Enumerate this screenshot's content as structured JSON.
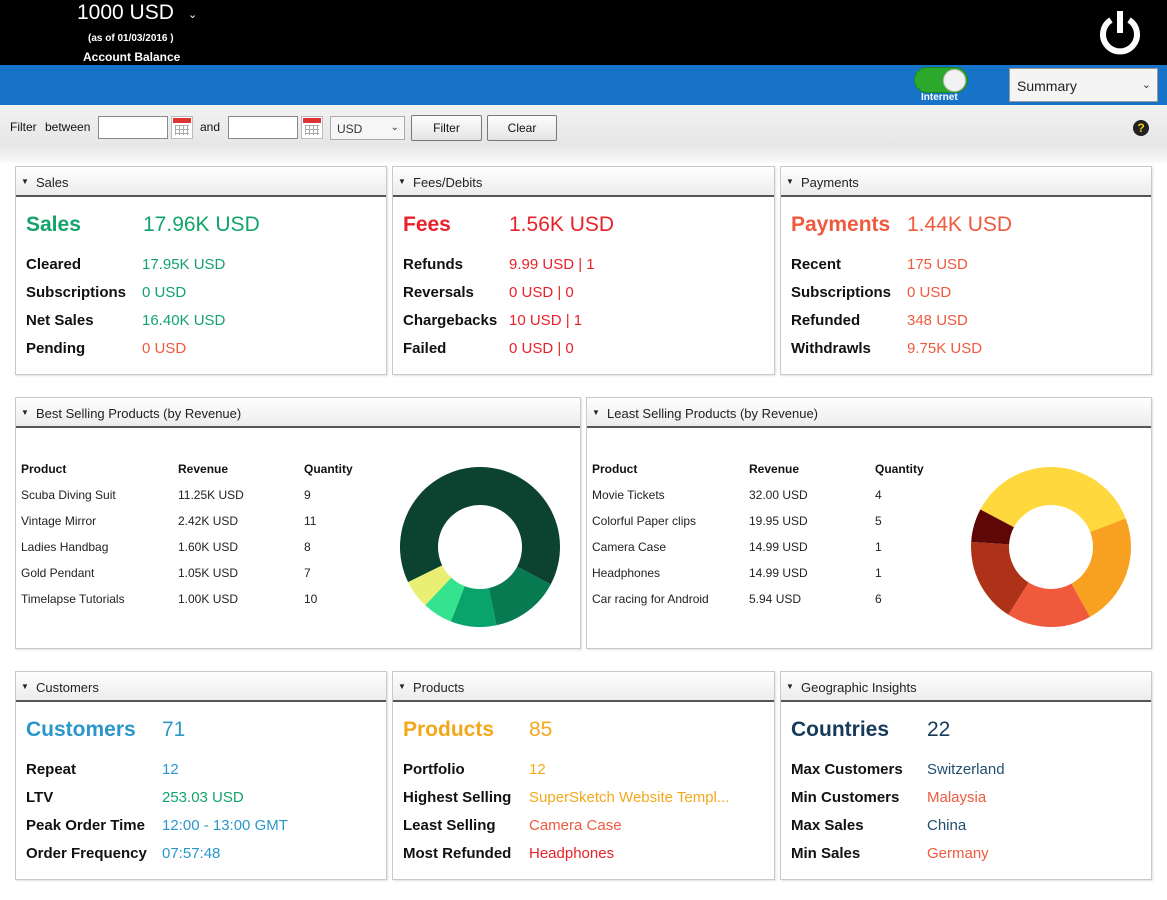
{
  "header": {
    "balance": "1000 USD",
    "balance_caret": "⌄",
    "as_of": "(as of 01/03/2016 )",
    "balance_label": "Account Balance",
    "power_icon": "power-icon"
  },
  "toolbar": {
    "internet_label": "Internet",
    "internet_on": true,
    "view_selected": "Summary"
  },
  "filter": {
    "filter_label": "Filter",
    "between_label": "between",
    "and_label": "and",
    "from_value": "",
    "to_value": "",
    "currency": "USD",
    "filter_button": "Filter",
    "clear_button": "Clear",
    "help": "?"
  },
  "colors": {
    "green": "#12a36c",
    "red": "#e8222a",
    "orange_red": "#ef5a3e",
    "blue": "#2b97c9",
    "amber": "#f3a81c",
    "navy": "#163a5a"
  },
  "sales": {
    "title": "Sales",
    "big_label": "Sales",
    "big_value": "17.96K USD",
    "rows": [
      {
        "label": "Cleared",
        "value": "17.95K USD"
      },
      {
        "label": "Subscriptions",
        "value": "0 USD"
      },
      {
        "label": "Net Sales",
        "value": "16.40K USD"
      },
      {
        "label": "Pending",
        "value": "0 USD"
      }
    ]
  },
  "fees": {
    "title": "Fees/Debits",
    "big_label": "Fees",
    "big_value": "1.56K USD",
    "rows": [
      {
        "label": "Refunds",
        "value": "9.99 USD | 1"
      },
      {
        "label": "Reversals",
        "value": "0 USD | 0"
      },
      {
        "label": "Chargebacks",
        "value": "10 USD | 1"
      },
      {
        "label": "Failed",
        "value": "0 USD | 0"
      }
    ]
  },
  "payments": {
    "title": "Payments",
    "big_label": "Payments",
    "big_value": "1.44K USD",
    "rows": [
      {
        "label": "Recent",
        "value": "175 USD"
      },
      {
        "label": "Subscriptions",
        "value": "0 USD"
      },
      {
        "label": "Refunded",
        "value": "348 USD"
      },
      {
        "label": "Withdrawls",
        "value": "9.75K USD"
      }
    ]
  },
  "best_selling": {
    "title": "Best Selling Products (by Revenue)",
    "columns": [
      "Product",
      "Revenue",
      "Quantity"
    ],
    "rows": [
      [
        "Scuba Diving Suit",
        "11.25K USD",
        "9"
      ],
      [
        "Vintage Mirror",
        "2.42K USD",
        "11"
      ],
      [
        "Ladies Handbag",
        "1.60K USD",
        "8"
      ],
      [
        "Gold Pendant",
        "1.05K USD",
        "7"
      ],
      [
        "Timelapse Tutorials",
        "1.00K USD",
        "10"
      ]
    ],
    "chart": {
      "type": "donut",
      "values": [
        11250,
        2420,
        1600,
        1050,
        1000
      ],
      "colors": [
        "#0b4230",
        "#077a52",
        "#08a46c",
        "#34e38d",
        "#e8ef73"
      ]
    }
  },
  "least_selling": {
    "title": "Least Selling Products (by Revenue)",
    "columns": [
      "Product",
      "Revenue",
      "Quantity"
    ],
    "rows": [
      [
        "Movie Tickets",
        "32.00 USD",
        "4"
      ],
      [
        "Colorful Paper clips",
        "19.95 USD",
        "5"
      ],
      [
        "Camera Case",
        "14.99 USD",
        "1"
      ],
      [
        "Headphones",
        "14.99 USD",
        "1"
      ],
      [
        "Car racing for Android",
        "5.94 USD",
        "6"
      ]
    ],
    "chart": {
      "type": "donut",
      "values": [
        32.0,
        19.95,
        14.99,
        14.99,
        5.94
      ],
      "colors": [
        "#fed83c",
        "#f8a020",
        "#ef5a3d",
        "#ad3217",
        "#5e0707"
      ]
    }
  },
  "customers": {
    "title": "Customers",
    "big_label": "Customers",
    "big_value": "71",
    "rows": [
      {
        "label": "Repeat",
        "value": "12",
        "color": "#2b97c9"
      },
      {
        "label": "LTV",
        "value": "253.03 USD",
        "color": "#12a36c"
      },
      {
        "label": "Peak Order Time",
        "value": "12:00 - 13:00 GMT",
        "color": "#2b97c9"
      },
      {
        "label": "Order Frequency",
        "value": "07:57:48",
        "color": "#2b97c9"
      }
    ]
  },
  "products": {
    "title": "Products",
    "big_label": "Products",
    "big_value": "85",
    "rows": [
      {
        "label": "Portfolio",
        "value": "12",
        "color": "#f3a81c"
      },
      {
        "label": "Highest Selling",
        "value": "SuperSketch Website Templ...",
        "color": "#f3a81c"
      },
      {
        "label": "Least Selling",
        "value": "Camera Case",
        "color": "#ef5a3e"
      },
      {
        "label": "Most Refunded",
        "value": "Headphones",
        "color": "#e8222a"
      }
    ]
  },
  "geo": {
    "title": "Geographic Insights",
    "big_label": "Countries",
    "big_value": "22",
    "rows": [
      {
        "label": "Max Customers",
        "value": "Switzerland",
        "color": "#1f4f6e"
      },
      {
        "label": "Min Customers",
        "value": "Malaysia",
        "color": "#ef5a3e"
      },
      {
        "label": "Max Sales",
        "value": "China",
        "color": "#1f4f6e"
      },
      {
        "label": "Min Sales",
        "value": "Germany",
        "color": "#ef5a3e"
      }
    ]
  }
}
